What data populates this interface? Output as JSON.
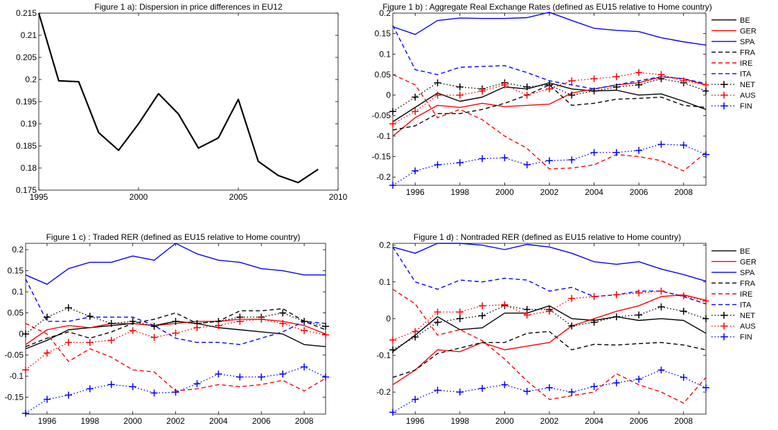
{
  "charts": [
    {
      "type": "line",
      "title": "Figure 1 a): Dispersion in price differences in EU12",
      "x": [
        1995,
        1996,
        1997,
        1998,
        1999,
        2000,
        2001,
        2002,
        2003,
        2004,
        2005,
        2006,
        2007,
        2008,
        2009
      ],
      "xlim": [
        1995,
        2010
      ],
      "ylim": [
        0.175,
        0.215
      ],
      "xticks": [
        1995,
        2000,
        2005,
        2010
      ],
      "xtick_labels": [
        "1995",
        "2000",
        "2005",
        "2010"
      ],
      "yticks": [
        0.175,
        0.18,
        0.185,
        0.19,
        0.195,
        0.2,
        0.205,
        0.21,
        0.215
      ],
      "ytick_labels": [
        "0.175",
        "0.18",
        "0.185",
        "0.19",
        "0.195",
        "0.2",
        "0.205",
        "0.21",
        "0.215"
      ],
      "legend": false,
      "series": [
        {
          "color": "#000000",
          "dash": "solid",
          "marker": "none",
          "values": [
            0.215,
            0.1997,
            0.1995,
            0.188,
            0.184,
            0.19,
            0.1968,
            0.1922,
            0.1845,
            0.1868,
            0.1955,
            0.1815,
            0.1783,
            0.1767,
            0.1797
          ]
        }
      ]
    },
    {
      "type": "line",
      "title": "Figure 1 b) : Aggregate Real Exchange Rates (defined as EU15 relative to Home country)",
      "x": [
        1995,
        1996,
        1997,
        1998,
        1999,
        2000,
        2001,
        2002,
        2003,
        2004,
        2005,
        2006,
        2007,
        2008,
        2009
      ],
      "xlim": [
        1995,
        2009
      ],
      "ylim": [
        -0.22,
        0.2
      ],
      "xticks": [
        1996,
        1998,
        2000,
        2002,
        2004,
        2006,
        2008
      ],
      "xtick_labels": [
        "1996",
        "1998",
        "2000",
        "2002",
        "2004",
        "2006",
        "2008"
      ],
      "yticks": [
        -0.2,
        -0.15,
        -0.1,
        -0.05,
        0,
        0.05,
        0.1,
        0.15,
        0.2
      ],
      "ytick_labels": [
        "-0.2",
        "-0.15",
        "-0.1",
        "-0.05",
        "0",
        "0.05",
        "0.1",
        "0.15",
        "0.2"
      ],
      "legend": true,
      "series": [
        {
          "name": "BE",
          "color": "#000000",
          "dash": "solid",
          "marker": "none",
          "values": [
            -0.065,
            -0.03,
            0.005,
            -0.015,
            -0.005,
            0.02,
            0.015,
            0.03,
            0.015,
            0.01,
            0.012,
            0.0,
            0.003,
            -0.015,
            -0.035
          ]
        },
        {
          "name": "GER",
          "color": "#ff0000",
          "dash": "solid",
          "marker": "none",
          "values": [
            -0.1,
            -0.055,
            -0.025,
            -0.03,
            -0.02,
            -0.028,
            -0.025,
            -0.022,
            0.005,
            0.015,
            0.025,
            0.03,
            0.045,
            0.04,
            0.025
          ]
        },
        {
          "name": "SPA",
          "color": "#0000ff",
          "dash": "solid",
          "marker": "none",
          "values": [
            0.167,
            0.148,
            0.182,
            0.188,
            0.187,
            0.187,
            0.189,
            0.202,
            0.182,
            0.163,
            0.158,
            0.155,
            0.14,
            0.13,
            0.122
          ]
        },
        {
          "name": "FRA",
          "color": "#000000",
          "dash": "dashed",
          "marker": "none",
          "values": [
            -0.085,
            -0.075,
            -0.045,
            -0.045,
            -0.035,
            -0.02,
            0.0,
            0.025,
            -0.025,
            -0.02,
            -0.01,
            -0.008,
            -0.005,
            -0.025,
            -0.03
          ]
        },
        {
          "name": "IRE",
          "color": "#ff0000",
          "dash": "dashed",
          "marker": "none",
          "values": [
            0.05,
            0.025,
            -0.055,
            -0.035,
            -0.06,
            -0.1,
            -0.13,
            -0.18,
            -0.178,
            -0.17,
            -0.145,
            -0.15,
            -0.16,
            -0.185,
            -0.14
          ]
        },
        {
          "name": "ITA",
          "color": "#0000ff",
          "dash": "dashed",
          "marker": "none",
          "values": [
            0.17,
            0.062,
            0.05,
            0.068,
            0.07,
            0.072,
            0.055,
            0.035,
            0.025,
            0.015,
            0.025,
            0.035,
            0.045,
            0.04,
            0.028
          ]
        },
        {
          "name": "NET",
          "color": "#000000",
          "dash": "dotted",
          "marker": "plus",
          "values": [
            -0.04,
            -0.005,
            0.03,
            0.02,
            0.015,
            0.03,
            0.02,
            0.025,
            0.0,
            0.01,
            0.02,
            0.025,
            0.04,
            0.03,
            0.01
          ]
        },
        {
          "name": "AUS",
          "color": "#ff0000",
          "dash": "dotted",
          "marker": "plus",
          "values": [
            -0.07,
            -0.04,
            0.0,
            0.0,
            0.01,
            0.025,
            0.0,
            0.015,
            0.035,
            0.04,
            0.045,
            0.055,
            0.05,
            0.035,
            0.025
          ]
        },
        {
          "name": "FIN",
          "color": "#0000ff",
          "dash": "dotted",
          "marker": "plus",
          "values": [
            -0.22,
            -0.185,
            -0.17,
            -0.165,
            -0.155,
            -0.153,
            -0.17,
            -0.16,
            -0.158,
            -0.14,
            -0.14,
            -0.135,
            -0.12,
            -0.122,
            -0.145
          ]
        }
      ]
    },
    {
      "type": "line",
      "title": "Figure 1 c) : Traded RER (defined as EU15 relative to Home country)",
      "x": [
        1995,
        1996,
        1997,
        1998,
        1999,
        2000,
        2001,
        2002,
        2003,
        2004,
        2005,
        2006,
        2007,
        2008,
        2009
      ],
      "xlim": [
        1995,
        2009
      ],
      "ylim": [
        -0.19,
        0.215
      ],
      "xticks": [
        1996,
        1998,
        2000,
        2002,
        2004,
        2006,
        2008
      ],
      "xtick_labels": [
        "1996",
        "1998",
        "2000",
        "2002",
        "2004",
        "2006",
        "2008"
      ],
      "yticks": [
        -0.15,
        -0.1,
        -0.05,
        0,
        0.05,
        0.1,
        0.15,
        0.2
      ],
      "ytick_labels": [
        "-0.15",
        "-0.1",
        "-0.05",
        "0",
        "0.05",
        "0.1",
        "0.15",
        "0.2"
      ],
      "legend": false,
      "series": [
        {
          "name": "BE",
          "color": "#000000",
          "dash": "solid",
          "marker": "none",
          "values": [
            -0.035,
            -0.015,
            0.01,
            0.015,
            0.02,
            0.025,
            0.02,
            0.03,
            0.025,
            0.015,
            0.01,
            0.005,
            0.0,
            -0.025,
            -0.03
          ]
        },
        {
          "name": "GER",
          "color": "#ff0000",
          "dash": "solid",
          "marker": "none",
          "values": [
            -0.025,
            0.01,
            0.02,
            0.015,
            0.025,
            0.025,
            0.02,
            0.025,
            0.03,
            0.03,
            0.035,
            0.035,
            0.03,
            0.02,
            0.0
          ]
        },
        {
          "name": "SPA",
          "color": "#0000ff",
          "dash": "solid",
          "marker": "none",
          "values": [
            0.14,
            0.118,
            0.155,
            0.17,
            0.17,
            0.185,
            0.175,
            0.215,
            0.19,
            0.175,
            0.17,
            0.155,
            0.15,
            0.14,
            0.14
          ]
        },
        {
          "name": "FRA",
          "color": "#000000",
          "dash": "dashed",
          "marker": "none",
          "values": [
            -0.03,
            -0.01,
            0.005,
            -0.01,
            0.005,
            0.025,
            0.035,
            0.05,
            0.025,
            0.03,
            0.055,
            0.055,
            0.06,
            0.03,
            0.01
          ]
        },
        {
          "name": "IRE",
          "color": "#ff0000",
          "dash": "dashed",
          "marker": "none",
          "values": [
            0.025,
            0.0,
            -0.065,
            -0.035,
            -0.055,
            -0.085,
            -0.09,
            -0.135,
            -0.13,
            -0.12,
            -0.125,
            -0.12,
            -0.11,
            -0.135,
            -0.105
          ]
        },
        {
          "name": "ITA",
          "color": "#0000ff",
          "dash": "dashed",
          "marker": "none",
          "values": [
            0.13,
            0.03,
            0.03,
            0.04,
            0.04,
            0.04,
            0.02,
            -0.01,
            -0.02,
            -0.02,
            -0.025,
            -0.01,
            0.005,
            0.03,
            0.025
          ]
        },
        {
          "name": "NET",
          "color": "#000000",
          "dash": "dotted",
          "marker": "plus",
          "values": [
            0.0,
            0.04,
            0.062,
            0.042,
            0.025,
            0.03,
            0.018,
            0.03,
            0.025,
            0.03,
            0.04,
            0.04,
            0.05,
            0.03,
            0.018
          ]
        },
        {
          "name": "AUS",
          "color": "#ff0000",
          "dash": "dotted",
          "marker": "plus",
          "values": [
            -0.085,
            -0.045,
            -0.02,
            -0.02,
            -0.015,
            0.008,
            -0.008,
            0.002,
            0.015,
            0.02,
            0.03,
            0.035,
            0.025,
            0.008,
            -0.002
          ]
        },
        {
          "name": "FIN",
          "color": "#0000ff",
          "dash": "dotted",
          "marker": "plus",
          "values": [
            -0.188,
            -0.155,
            -0.145,
            -0.13,
            -0.12,
            -0.125,
            -0.14,
            -0.138,
            -0.118,
            -0.095,
            -0.102,
            -0.102,
            -0.095,
            -0.078,
            -0.102
          ]
        }
      ]
    },
    {
      "type": "line",
      "title": "Figure 1 d) : Nontraded RER (defined as EU15 relative to Home country)",
      "x": [
        1995,
        1996,
        1997,
        1998,
        1999,
        2000,
        2001,
        2002,
        2003,
        2004,
        2005,
        2006,
        2007,
        2008,
        2009
      ],
      "xlim": [
        1995,
        2009
      ],
      "ylim": [
        -0.26,
        0.205
      ],
      "xticks": [
        1996,
        1998,
        2000,
        2002,
        2004,
        2006,
        2008
      ],
      "xtick_labels": [
        "1996",
        "1998",
        "2000",
        "2002",
        "2004",
        "2006",
        "2008"
      ],
      "yticks": [
        -0.2,
        -0.1,
        0,
        0.1,
        0.2
      ],
      "ytick_labels": [
        "-0.2",
        "-0.1",
        "0",
        "0.1",
        "0.2"
      ],
      "legend": true,
      "series": [
        {
          "name": "BE",
          "color": "#000000",
          "dash": "solid",
          "marker": "none",
          "values": [
            -0.09,
            -0.045,
            0.005,
            -0.03,
            -0.025,
            0.015,
            0.015,
            0.035,
            0.0,
            -0.005,
            0.005,
            -0.005,
            0.0,
            -0.005,
            -0.04
          ]
        },
        {
          "name": "GER",
          "color": "#ff0000",
          "dash": "solid",
          "marker": "none",
          "values": [
            -0.18,
            -0.14,
            -0.085,
            -0.09,
            -0.065,
            -0.085,
            -0.075,
            -0.065,
            -0.02,
            0.0,
            0.02,
            0.035,
            0.06,
            0.065,
            0.05
          ]
        },
        {
          "name": "SPA",
          "color": "#0000ff",
          "dash": "solid",
          "marker": "none",
          "values": [
            0.195,
            0.178,
            0.205,
            0.205,
            0.2,
            0.188,
            0.202,
            0.195,
            0.178,
            0.155,
            0.148,
            0.155,
            0.135,
            0.12,
            0.102
          ]
        },
        {
          "name": "FRA",
          "color": "#000000",
          "dash": "dashed",
          "marker": "none",
          "values": [
            -0.16,
            -0.14,
            -0.095,
            -0.08,
            -0.065,
            -0.065,
            -0.04,
            -0.035,
            -0.085,
            -0.07,
            -0.072,
            -0.068,
            -0.065,
            -0.072,
            -0.085
          ]
        },
        {
          "name": "IRE",
          "color": "#ff0000",
          "dash": "dashed",
          "marker": "none",
          "values": [
            0.08,
            0.04,
            -0.045,
            -0.03,
            -0.06,
            -0.11,
            -0.17,
            -0.22,
            -0.21,
            -0.2,
            -0.15,
            -0.18,
            -0.2,
            -0.23,
            -0.16
          ]
        },
        {
          "name": "ITA",
          "color": "#0000ff",
          "dash": "dashed",
          "marker": "none",
          "values": [
            0.195,
            0.1,
            0.08,
            0.105,
            0.1,
            0.11,
            0.105,
            0.075,
            0.085,
            0.06,
            0.065,
            0.075,
            0.075,
            0.06,
            0.04
          ]
        },
        {
          "name": "NET",
          "color": "#000000",
          "dash": "dotted",
          "marker": "plus",
          "values": [
            -0.085,
            -0.05,
            -0.01,
            0.0,
            0.008,
            0.035,
            0.025,
            0.025,
            -0.02,
            -0.01,
            0.005,
            0.01,
            0.032,
            0.02,
            0.0
          ]
        },
        {
          "name": "AUS",
          "color": "#ff0000",
          "dash": "dotted",
          "marker": "plus",
          "values": [
            -0.058,
            -0.035,
            0.018,
            0.018,
            0.035,
            0.038,
            0.01,
            0.02,
            0.055,
            0.06,
            0.065,
            0.07,
            0.075,
            0.062,
            0.048
          ]
        },
        {
          "name": "FIN",
          "color": "#0000ff",
          "dash": "dotted",
          "marker": "plus",
          "values": [
            -0.255,
            -0.22,
            -0.195,
            -0.2,
            -0.19,
            -0.18,
            -0.198,
            -0.188,
            -0.2,
            -0.185,
            -0.175,
            -0.165,
            -0.14,
            -0.16,
            -0.188
          ]
        }
      ]
    }
  ]
}
